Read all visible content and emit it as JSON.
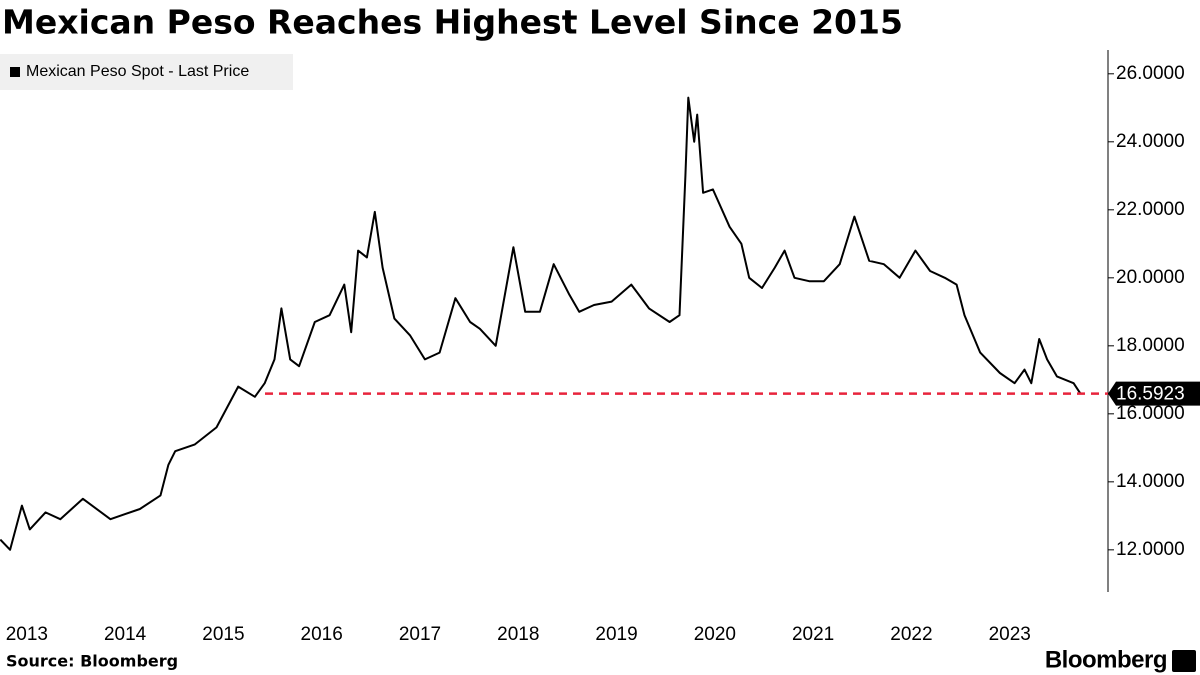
{
  "chart_data": {
    "type": "line",
    "title": "Mexican Peso Reaches Highest Level Since 2015",
    "source": "Source: Bloomberg",
    "brand": "Bloomberg",
    "xlim": [
      2013.227,
      2024.5
    ],
    "ylim": [
      10.76,
      26.7
    ],
    "xticks": [
      {
        "value": 2013.5,
        "label": "2013"
      },
      {
        "value": 2014.5,
        "label": "2014"
      },
      {
        "value": 2015.5,
        "label": "2015"
      },
      {
        "value": 2016.5,
        "label": "2016"
      },
      {
        "value": 2017.5,
        "label": "2017"
      },
      {
        "value": 2018.5,
        "label": "2018"
      },
      {
        "value": 2019.5,
        "label": "2019"
      },
      {
        "value": 2020.5,
        "label": "2020"
      },
      {
        "value": 2021.5,
        "label": "2021"
      },
      {
        "value": 2022.5,
        "label": "2022"
      },
      {
        "value": 2023.5,
        "label": "2023"
      }
    ],
    "yticks": [
      {
        "value": 12,
        "label": "12.0000"
      },
      {
        "value": 14,
        "label": "14.0000"
      },
      {
        "value": 16,
        "label": "16.0000"
      },
      {
        "value": 18,
        "label": "18.0000"
      },
      {
        "value": 20,
        "label": "20.0000"
      },
      {
        "value": 22,
        "label": "22.0000"
      },
      {
        "value": 24,
        "label": "24.0000"
      },
      {
        "value": 26,
        "label": "26.0000"
      }
    ],
    "reference_line": {
      "value": 16.5923,
      "color": "#e8243c"
    },
    "legend": "top-left",
    "x": [
      2013.23,
      2013.33,
      2013.45,
      2013.53,
      2013.69,
      2013.84,
      2014.07,
      2014.35,
      2014.65,
      2014.86,
      2014.94,
      2015.01,
      2015.21,
      2015.43,
      2015.65,
      2015.82,
      2015.92,
      2016.02,
      2016.09,
      2016.18,
      2016.27,
      2016.43,
      2016.58,
      2016.73,
      2016.8,
      2016.87,
      2016.96,
      2017.04,
      2017.12,
      2017.24,
      2017.4,
      2017.55,
      2017.7,
      2017.86,
      2018.01,
      2018.11,
      2018.27,
      2018.45,
      2018.57,
      2018.72,
      2018.86,
      2019.02,
      2019.12,
      2019.27,
      2019.45,
      2019.65,
      2019.83,
      2020.04,
      2020.14,
      2020.2,
      2020.23,
      2020.29,
      2020.32,
      2020.38,
      2020.48,
      2020.65,
      2020.77,
      2020.85,
      2020.98,
      2021.11,
      2021.21,
      2021.31,
      2021.46,
      2021.61,
      2021.77,
      2021.92,
      2022.07,
      2022.22,
      2022.38,
      2022.54,
      2022.69,
      2022.84,
      2022.96,
      2023.04,
      2023.2,
      2023.4,
      2023.55,
      2023.65,
      2023.72,
      2023.8,
      2023.88,
      2023.98,
      2024.15,
      2024.22
    ],
    "series": [
      {
        "name": "Mexican Peso Spot - Last Price",
        "color": "#000000",
        "values": [
          12.3,
          12.0,
          13.3,
          12.6,
          13.1,
          12.9,
          13.5,
          12.9,
          13.2,
          13.6,
          14.5,
          14.9,
          15.1,
          15.6,
          16.8,
          16.5,
          16.9,
          17.6,
          19.1,
          17.6,
          17.4,
          18.7,
          18.9,
          19.8,
          18.4,
          20.8,
          20.6,
          21.94,
          20.3,
          18.8,
          18.3,
          17.6,
          17.8,
          19.4,
          18.7,
          18.5,
          18.0,
          20.9,
          19.0,
          19.0,
          20.4,
          19.5,
          19.0,
          19.2,
          19.3,
          19.8,
          19.1,
          18.7,
          18.9,
          23.0,
          25.3,
          24.0,
          24.8,
          22.5,
          22.6,
          21.5,
          21.0,
          20.0,
          19.7,
          20.3,
          20.8,
          20.0,
          19.9,
          19.9,
          20.4,
          21.8,
          20.5,
          20.4,
          20.0,
          20.8,
          20.2,
          20.0,
          19.8,
          18.9,
          17.8,
          17.2,
          16.9,
          17.3,
          16.9,
          18.2,
          17.6,
          17.1,
          16.9,
          16.5923
        ]
      }
    ]
  }
}
